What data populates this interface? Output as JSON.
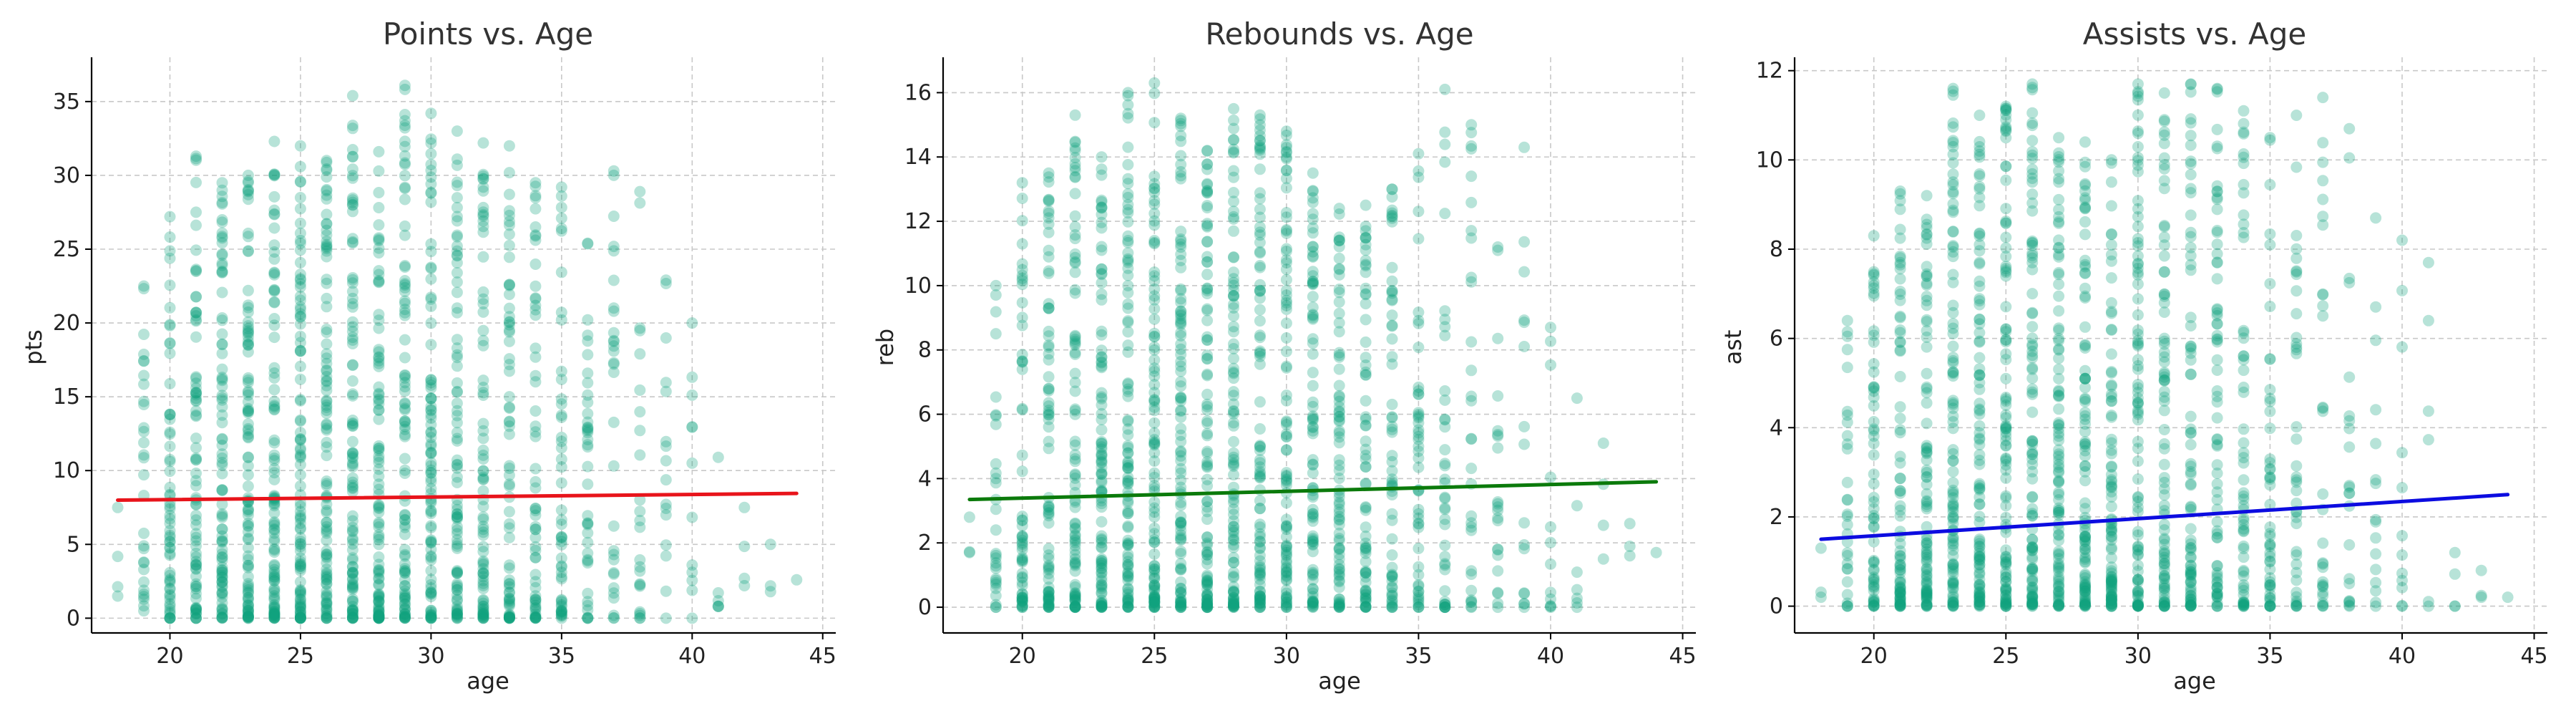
{
  "figure": {
    "background": "#ffffff"
  },
  "chart_data": [
    {
      "type": "scatter",
      "title": "Points vs. Age",
      "xlabel": "age",
      "ylabel": "pts",
      "xlim": [
        17,
        45.5
      ],
      "ylim": [
        -1,
        38
      ],
      "xticks": [
        20,
        25,
        30,
        35,
        40,
        45
      ],
      "yticks": [
        0,
        5,
        10,
        15,
        20,
        25,
        30,
        35
      ],
      "grid": true,
      "legend": "none",
      "point_color": "#11a37f",
      "point_opacity": 0.3,
      "columns": [
        {
          "x": 18,
          "min": 1.5,
          "max": 7.5,
          "n": 4
        },
        {
          "x": 19,
          "min": 0.5,
          "max": 22.5,
          "n": 30
        },
        {
          "x": 20,
          "min": 0,
          "max": 27.2,
          "n": 60
        },
        {
          "x": 21,
          "min": 0,
          "max": 31.3,
          "n": 80
        },
        {
          "x": 22,
          "min": 0,
          "max": 29.5,
          "n": 90
        },
        {
          "x": 23,
          "min": 0,
          "max": 30.0,
          "n": 100
        },
        {
          "x": 24,
          "min": 0,
          "max": 32.3,
          "n": 100
        },
        {
          "x": 25,
          "min": 0,
          "max": 32.0,
          "n": 100
        },
        {
          "x": 26,
          "min": 0,
          "max": 31.0,
          "n": 100
        },
        {
          "x": 27,
          "min": 0,
          "max": 35.4,
          "n": 100
        },
        {
          "x": 28,
          "min": 0,
          "max": 31.6,
          "n": 100
        },
        {
          "x": 29,
          "min": 0,
          "max": 36.1,
          "n": 95
        },
        {
          "x": 30,
          "min": 0,
          "max": 34.2,
          "n": 90
        },
        {
          "x": 31,
          "min": 0,
          "max": 33.0,
          "n": 85
        },
        {
          "x": 32,
          "min": 0,
          "max": 32.2,
          "n": 80
        },
        {
          "x": 33,
          "min": 0,
          "max": 32.0,
          "n": 70
        },
        {
          "x": 34,
          "min": 0,
          "max": 29.5,
          "n": 60
        },
        {
          "x": 35,
          "min": 0,
          "max": 29.2,
          "n": 50
        },
        {
          "x": 36,
          "min": 0,
          "max": 25.4,
          "n": 40
        },
        {
          "x": 37,
          "min": 0,
          "max": 30.3,
          "n": 30
        },
        {
          "x": 38,
          "min": 0,
          "max": 28.9,
          "n": 24
        },
        {
          "x": 39,
          "min": 0,
          "max": 22.9,
          "n": 16
        },
        {
          "x": 40,
          "min": 0,
          "max": 20.0,
          "n": 12
        },
        {
          "x": 41,
          "min": 0.8,
          "max": 10.9,
          "n": 6
        },
        {
          "x": 42,
          "min": 2.2,
          "max": 7.5,
          "n": 4
        },
        {
          "x": 43,
          "min": 1.8,
          "max": 5.0,
          "n": 3
        },
        {
          "x": 44,
          "min": 2.4,
          "max": 2.6,
          "n": 1
        }
      ],
      "trendline": {
        "x": [
          18,
          44
        ],
        "y": [
          8.0,
          8.45
        ],
        "color": "#e8141b"
      }
    },
    {
      "type": "scatter",
      "title": "Rebounds vs. Age",
      "xlabel": "age",
      "ylabel": "reb",
      "xlim": [
        17,
        45.5
      ],
      "ylim": [
        -0.8,
        17.1
      ],
      "xticks": [
        20,
        25,
        30,
        35,
        40,
        45
      ],
      "yticks": [
        0,
        2,
        4,
        6,
        8,
        10,
        12,
        14,
        16
      ],
      "grid": true,
      "legend": "none",
      "point_color": "#11a37f",
      "point_opacity": 0.3,
      "columns": [
        {
          "x": 18,
          "min": 1.7,
          "max": 2.8,
          "n": 3
        },
        {
          "x": 19,
          "min": 0,
          "max": 10.0,
          "n": 30
        },
        {
          "x": 20,
          "min": 0,
          "max": 13.2,
          "n": 60
        },
        {
          "x": 21,
          "min": 0,
          "max": 13.5,
          "n": 80
        },
        {
          "x": 22,
          "min": 0,
          "max": 15.3,
          "n": 90
        },
        {
          "x": 23,
          "min": 0,
          "max": 14.0,
          "n": 100
        },
        {
          "x": 24,
          "min": 0,
          "max": 16.0,
          "n": 100
        },
        {
          "x": 25,
          "min": 0,
          "max": 16.3,
          "n": 100
        },
        {
          "x": 26,
          "min": 0,
          "max": 15.2,
          "n": 100
        },
        {
          "x": 27,
          "min": 0,
          "max": 14.2,
          "n": 100
        },
        {
          "x": 28,
          "min": 0,
          "max": 15.5,
          "n": 100
        },
        {
          "x": 29,
          "min": 0,
          "max": 15.3,
          "n": 95
        },
        {
          "x": 30,
          "min": 0,
          "max": 14.8,
          "n": 90
        },
        {
          "x": 31,
          "min": 0,
          "max": 13.5,
          "n": 85
        },
        {
          "x": 32,
          "min": 0,
          "max": 12.4,
          "n": 80
        },
        {
          "x": 33,
          "min": 0,
          "max": 12.5,
          "n": 70
        },
        {
          "x": 34,
          "min": 0,
          "max": 13.0,
          "n": 60
        },
        {
          "x": 35,
          "min": 0,
          "max": 14.1,
          "n": 50
        },
        {
          "x": 36,
          "min": 0,
          "max": 16.1,
          "n": 40
        },
        {
          "x": 37,
          "min": 0,
          "max": 15.0,
          "n": 30
        },
        {
          "x": 38,
          "min": 0,
          "max": 11.2,
          "n": 22
        },
        {
          "x": 39,
          "min": 0,
          "max": 14.3,
          "n": 16
        },
        {
          "x": 40,
          "min": 0,
          "max": 8.7,
          "n": 12
        },
        {
          "x": 41,
          "min": 0,
          "max": 6.5,
          "n": 7
        },
        {
          "x": 42,
          "min": 1.5,
          "max": 5.1,
          "n": 4
        },
        {
          "x": 43,
          "min": 1.6,
          "max": 2.6,
          "n": 3
        },
        {
          "x": 44,
          "min": 1.6,
          "max": 1.7,
          "n": 1
        }
      ],
      "trendline": {
        "x": [
          18,
          44
        ],
        "y": [
          3.35,
          3.9
        ],
        "color": "#0b7a0b"
      }
    },
    {
      "type": "scatter",
      "title": "Assists vs. Age",
      "xlabel": "age",
      "ylabel": "ast",
      "xlim": [
        17,
        45.5
      ],
      "ylim": [
        -0.6,
        12.3
      ],
      "xticks": [
        20,
        25,
        30,
        35,
        40,
        45
      ],
      "yticks": [
        0,
        2,
        4,
        6,
        8,
        10,
        12
      ],
      "grid": true,
      "legend": "none",
      "point_color": "#11a37f",
      "point_opacity": 0.3,
      "columns": [
        {
          "x": 18,
          "min": 0.2,
          "max": 1.3,
          "n": 3
        },
        {
          "x": 19,
          "min": 0,
          "max": 6.4,
          "n": 30
        },
        {
          "x": 20,
          "min": 0,
          "max": 8.3,
          "n": 60
        },
        {
          "x": 21,
          "min": 0,
          "max": 9.3,
          "n": 80
        },
        {
          "x": 22,
          "min": 0,
          "max": 9.2,
          "n": 90
        },
        {
          "x": 23,
          "min": 0,
          "max": 11.6,
          "n": 100
        },
        {
          "x": 24,
          "min": 0,
          "max": 11.0,
          "n": 100
        },
        {
          "x": 25,
          "min": 0,
          "max": 11.2,
          "n": 100
        },
        {
          "x": 26,
          "min": 0,
          "max": 11.7,
          "n": 100
        },
        {
          "x": 27,
          "min": 0,
          "max": 10.5,
          "n": 100
        },
        {
          "x": 28,
          "min": 0,
          "max": 10.4,
          "n": 100
        },
        {
          "x": 29,
          "min": 0,
          "max": 10.0,
          "n": 95
        },
        {
          "x": 30,
          "min": 0,
          "max": 11.7,
          "n": 90
        },
        {
          "x": 31,
          "min": 0,
          "max": 11.5,
          "n": 85
        },
        {
          "x": 32,
          "min": 0,
          "max": 11.7,
          "n": 80
        },
        {
          "x": 33,
          "min": 0,
          "max": 11.6,
          "n": 70
        },
        {
          "x": 34,
          "min": 0,
          "max": 11.1,
          "n": 60
        },
        {
          "x": 35,
          "min": 0,
          "max": 10.5,
          "n": 50
        },
        {
          "x": 36,
          "min": 0,
          "max": 11.0,
          "n": 40
        },
        {
          "x": 37,
          "min": 0,
          "max": 11.4,
          "n": 30
        },
        {
          "x": 38,
          "min": 0,
          "max": 10.7,
          "n": 22
        },
        {
          "x": 39,
          "min": 0,
          "max": 8.7,
          "n": 16
        },
        {
          "x": 40,
          "min": 0,
          "max": 8.2,
          "n": 12
        },
        {
          "x": 41,
          "min": 0,
          "max": 7.7,
          "n": 6
        },
        {
          "x": 42,
          "min": 0,
          "max": 1.2,
          "n": 4
        },
        {
          "x": 43,
          "min": 0.2,
          "max": 0.8,
          "n": 3
        },
        {
          "x": 44,
          "min": 0.2,
          "max": 0.2,
          "n": 1
        }
      ],
      "trendline": {
        "x": [
          18,
          44
        ],
        "y": [
          1.5,
          2.5
        ],
        "color": "#0c0ce0"
      }
    }
  ]
}
